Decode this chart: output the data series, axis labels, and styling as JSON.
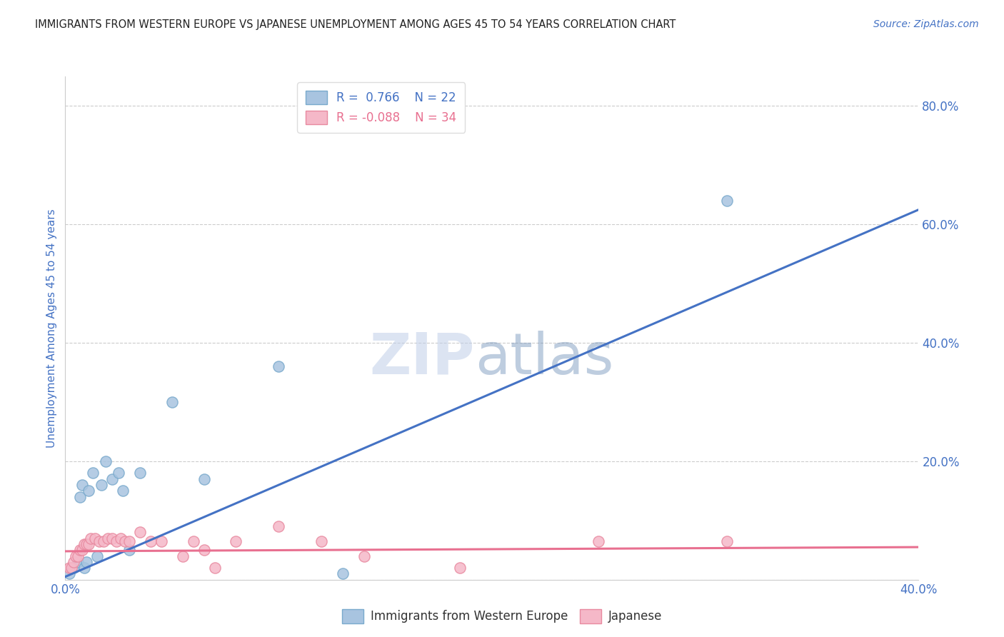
{
  "title": "IMMIGRANTS FROM WESTERN EUROPE VS JAPANESE UNEMPLOYMENT AMONG AGES 45 TO 54 YEARS CORRELATION CHART",
  "source": "Source: ZipAtlas.com",
  "ylabel": "Unemployment Among Ages 45 to 54 years",
  "xlim": [
    0.0,
    0.4
  ],
  "ylim": [
    0.0,
    0.85
  ],
  "blue_R": "0.766",
  "blue_N": "22",
  "pink_R": "-0.088",
  "pink_N": "34",
  "blue_scatter_x": [
    0.002,
    0.004,
    0.006,
    0.007,
    0.008,
    0.009,
    0.01,
    0.011,
    0.013,
    0.015,
    0.017,
    0.019,
    0.022,
    0.025,
    0.027,
    0.03,
    0.035,
    0.05,
    0.065,
    0.1,
    0.13,
    0.31
  ],
  "blue_scatter_y": [
    0.01,
    0.02,
    0.03,
    0.14,
    0.16,
    0.02,
    0.03,
    0.15,
    0.18,
    0.04,
    0.16,
    0.2,
    0.17,
    0.18,
    0.15,
    0.05,
    0.18,
    0.3,
    0.17,
    0.36,
    0.01,
    0.64
  ],
  "pink_scatter_x": [
    0.002,
    0.003,
    0.004,
    0.005,
    0.006,
    0.007,
    0.008,
    0.009,
    0.01,
    0.011,
    0.012,
    0.014,
    0.016,
    0.018,
    0.02,
    0.022,
    0.024,
    0.026,
    0.028,
    0.03,
    0.035,
    0.04,
    0.045,
    0.055,
    0.06,
    0.065,
    0.07,
    0.08,
    0.1,
    0.12,
    0.14,
    0.185,
    0.25,
    0.31
  ],
  "pink_scatter_y": [
    0.02,
    0.02,
    0.03,
    0.04,
    0.04,
    0.05,
    0.05,
    0.06,
    0.06,
    0.06,
    0.07,
    0.07,
    0.065,
    0.065,
    0.07,
    0.07,
    0.065,
    0.07,
    0.065,
    0.065,
    0.08,
    0.065,
    0.065,
    0.04,
    0.065,
    0.05,
    0.02,
    0.065,
    0.09,
    0.065,
    0.04,
    0.02,
    0.065,
    0.065
  ],
  "blue_line_x": [
    0.0,
    0.4
  ],
  "blue_line_y": [
    0.005,
    0.625
  ],
  "pink_line_x": [
    0.0,
    0.4
  ],
  "pink_line_y": [
    0.048,
    0.055
  ],
  "blue_color": "#a8c4e0",
  "pink_color": "#f5b8c8",
  "blue_edge_color": "#7aaacc",
  "pink_edge_color": "#e88aa0",
  "blue_line_color": "#4472c4",
  "pink_line_color": "#e87090",
  "title_color": "#222222",
  "source_color": "#4472c4",
  "tick_label_color": "#4472c4",
  "ylabel_color": "#4472c4",
  "watermark_color": "#d0e0f0",
  "background_color": "#ffffff",
  "grid_color": "#cccccc",
  "ytick_vals": [
    0.0,
    0.2,
    0.4,
    0.6,
    0.8
  ],
  "ytick_labels": [
    "",
    "20.0%",
    "40.0%",
    "60.0%",
    "80.0%"
  ],
  "xtick_vals": [
    0.0,
    0.1,
    0.2,
    0.3,
    0.4
  ],
  "xtick_labels": [
    "0.0%",
    "",
    "",
    "",
    "40.0%"
  ]
}
